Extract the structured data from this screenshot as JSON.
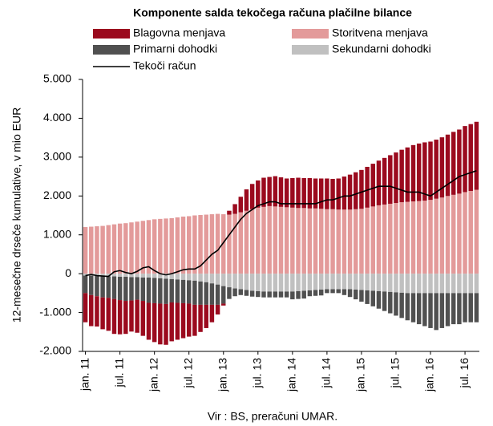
{
  "chart_data": {
    "type": "bar",
    "stacked": true,
    "title": "Komponente salda tekočega računa plačilne bilance",
    "y_label": "12-mesečne drseče kumulative, v mio EUR",
    "source": "Vir : BS, preračuni  UMAR.",
    "categories": [
      "jan. 11",
      null,
      null,
      null,
      null,
      null,
      "jul. 11",
      null,
      null,
      null,
      null,
      null,
      "jan. 12",
      null,
      null,
      null,
      null,
      null,
      "jul. 12",
      null,
      null,
      null,
      null,
      null,
      "jan. 13",
      null,
      null,
      null,
      null,
      null,
      "jul. 13",
      null,
      null,
      null,
      null,
      null,
      "jan. 14",
      null,
      null,
      null,
      null,
      null,
      "jul. 14",
      null,
      null,
      null,
      null,
      null,
      "jan. 15",
      null,
      null,
      null,
      null,
      null,
      "jul. 15",
      null,
      null,
      null,
      null,
      null,
      "jan. 16",
      null,
      null,
      null,
      null,
      null,
      "jul. 16",
      null,
      null
    ],
    "series": [
      {
        "name": "Blagovna menjava",
        "color": "#9b0a1e",
        "values": [
          -750,
          -800,
          -780,
          -820,
          -850,
          -900,
          -880,
          -850,
          -800,
          -850,
          -900,
          -950,
          -1000,
          -1050,
          -1050,
          -1000,
          -950,
          -900,
          -850,
          -800,
          -700,
          -600,
          -450,
          -250,
          -50,
          100,
          250,
          400,
          550,
          650,
          700,
          750,
          750,
          780,
          760,
          740,
          760,
          780,
          770,
          780,
          770,
          780,
          790,
          780,
          800,
          850,
          900,
          950,
          1000,
          1050,
          1100,
          1150,
          1200,
          1250,
          1300,
          1350,
          1400,
          1450,
          1480,
          1500,
          1500,
          1520,
          1550,
          1580,
          1620,
          1650,
          1700,
          1720,
          1750
        ]
      },
      {
        "name": "Storitvena menjava",
        "color": "#e39a9a",
        "values": [
          1200,
          1210,
          1220,
          1230,
          1250,
          1270,
          1290,
          1300,
          1320,
          1340,
          1360,
          1380,
          1400,
          1410,
          1420,
          1430,
          1450,
          1470,
          1480,
          1500,
          1510,
          1520,
          1530,
          1540,
          1530,
          1520,
          1540,
          1580,
          1620,
          1660,
          1700,
          1720,
          1740,
          1730,
          1720,
          1710,
          1700,
          1690,
          1690,
          1680,
          1680,
          1670,
          1660,
          1660,
          1650,
          1650,
          1650,
          1660,
          1670,
          1700,
          1730,
          1760,
          1780,
          1800,
          1820,
          1840,
          1850,
          1860,
          1870,
          1880,
          1900,
          1930,
          1960,
          2000,
          2030,
          2060,
          2100,
          2130,
          2160
        ]
      },
      {
        "name": "Primarni dohodki",
        "color": "#505050",
        "values": [
          -450,
          -500,
          -520,
          -550,
          -550,
          -580,
          -600,
          -620,
          -600,
          -580,
          -600,
          -650,
          -650,
          -650,
          -650,
          -600,
          -600,
          -600,
          -600,
          -620,
          -600,
          -580,
          -550,
          -520,
          -450,
          -300,
          -200,
          -150,
          -150,
          -150,
          -150,
          -150,
          -150,
          -150,
          -150,
          -150,
          -200,
          -200,
          -200,
          -150,
          -150,
          -150,
          -100,
          -100,
          -100,
          -150,
          -200,
          -250,
          -300,
          -350,
          -400,
          -450,
          -500,
          -550,
          -600,
          -650,
          -700,
          -750,
          -800,
          -850,
          -900,
          -950,
          -900,
          -850,
          -800,
          -800,
          -750,
          -750,
          -750
        ]
      },
      {
        "name": "Sekundarni dohodki",
        "color": "#c0c0c0",
        "values": [
          -50,
          -50,
          -60,
          -60,
          -70,
          -70,
          -80,
          -80,
          -90,
          -90,
          -100,
          -100,
          -110,
          -120,
          -130,
          -140,
          -150,
          -160,
          -170,
          -180,
          -200,
          -220,
          -250,
          -280,
          -320,
          -350,
          -380,
          -400,
          -420,
          -440,
          -450,
          -460,
          -460,
          -460,
          -460,
          -460,
          -460,
          -450,
          -440,
          -430,
          -420,
          -410,
          -400,
          -400,
          -400,
          -400,
          -400,
          -410,
          -420,
          -430,
          -440,
          -450,
          -460,
          -470,
          -480,
          -490,
          -500,
          -500,
          -500,
          -500,
          -500,
          -500,
          -500,
          -500,
          -500,
          -500,
          -500,
          -500,
          -500
        ]
      },
      {
        "name": "Tekoči račun",
        "color": "#000000",
        "type": "line",
        "values": [
          -50,
          -20,
          -50,
          -60,
          -70,
          50,
          80,
          30,
          0,
          60,
          150,
          180,
          80,
          0,
          -30,
          0,
          50,
          100,
          120,
          120,
          200,
          350,
          500,
          600,
          800,
          1000,
          1200,
          1400,
          1550,
          1650,
          1750,
          1800,
          1850,
          1850,
          1800,
          1800,
          1800,
          1800,
          1800,
          1800,
          1800,
          1850,
          1900,
          1900,
          1950,
          2000,
          2000,
          2050,
          2100,
          2150,
          2200,
          2250,
          2250,
          2250,
          2200,
          2150,
          2100,
          2100,
          2100,
          2050,
          2000,
          2100,
          2200,
          2300,
          2400,
          2500,
          2550,
          2600,
          2650
        ]
      }
    ],
    "ylim": [
      -2000,
      5000
    ],
    "yticks": [
      {
        "value": -2000,
        "label": "-2.000"
      },
      {
        "value": -1000,
        "label": "-1.000"
      },
      0,
      {
        "value": 1000,
        "label": "1.000"
      },
      {
        "value": 2000,
        "label": "2.000"
      },
      {
        "value": 3000,
        "label": "3.000"
      },
      {
        "value": 4000,
        "label": "4.000"
      },
      {
        "value": 5000,
        "label": "5.000"
      }
    ]
  }
}
